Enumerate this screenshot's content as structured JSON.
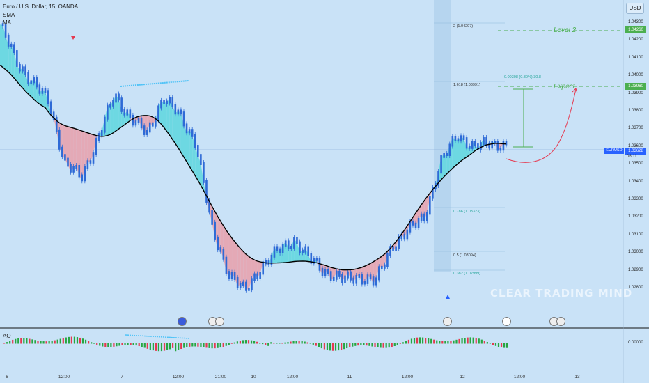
{
  "header": {
    "symbol": "Euro / U.S. Dollar, 15, OANDA",
    "indicator1": "SMA",
    "indicator2": "MA"
  },
  "currency_button": "USD",
  "watermark": "CLEAR TRADING MIND",
  "annotations": {
    "level2": "Level 2",
    "expect": "Expect",
    "measure": "0.00308 (0.30%) 30.8"
  },
  "fib_levels": [
    {
      "label": "2 (1.04297)"
    },
    {
      "label": "1.618 (1.03991)"
    },
    {
      "label": "0.786 (1.03323)"
    },
    {
      "label": "0.5 (1.03094)"
    },
    {
      "label": "0.382 (1.02999)"
    }
  ],
  "price_axis": {
    "ticks": [
      "1.04300",
      "1.04200",
      "1.04100",
      "1.04000",
      "1.03900",
      "1.03800",
      "1.03700",
      "1.03600",
      "1.03500",
      "1.03400",
      "1.03300",
      "1.03200",
      "1.03100",
      "1.03000",
      "1.02900",
      "1.02800"
    ],
    "level2_tag": "1.04260",
    "expect_tag": "1.03960",
    "current_symbol": "EURUSD",
    "current_price": "1.03628",
    "countdown": "06:11"
  },
  "ao_panel": {
    "label": "AO",
    "value": "0.00000"
  },
  "time_axis": [
    "6",
    "12:00",
    "7",
    "12:00",
    "21:00",
    "10",
    "12:00",
    "11",
    "12:00",
    "12",
    "12:00",
    "13"
  ],
  "colors": {
    "background": "#c9e2f7",
    "bull_candle": "#2e6ad6",
    "bear_fill": "#e4a9b6",
    "bull_fill": "#6dd8e2",
    "ma_line": "#000000",
    "level_line": "#4caf50",
    "projection": "#e53950"
  },
  "chart_data": {
    "type": "line",
    "title": "Euro / U.S. Dollar, 15, OANDA",
    "price_levels": {
      "level_2": 1.0426,
      "expect": 1.0396,
      "current": 1.03628
    },
    "fib": {
      "2": 1.04297,
      "1.618": 1.03991,
      "0.786": 1.03323,
      "0.5": 1.03094,
      "0.382": 1.02999
    },
    "close_series_approx": [
      1.0423,
      1.0405,
      1.0395,
      1.0385,
      1.0355,
      1.0348,
      1.0368,
      1.0388,
      1.0378,
      1.0369,
      1.0388,
      1.0378,
      1.0366,
      1.0322,
      1.0302,
      1.0292,
      1.0305,
      1.0312,
      1.0318,
      1.0308,
      1.0302,
      1.0298,
      1.03,
      1.0297,
      1.0315,
      1.0322,
      1.033,
      1.0355,
      1.037,
      1.0362,
      1.0366,
      1.0363
    ],
    "ylim": [
      1.0275,
      1.0435
    ],
    "grid": false,
    "series": [
      {
        "name": "SMA"
      },
      {
        "name": "MA"
      }
    ]
  }
}
